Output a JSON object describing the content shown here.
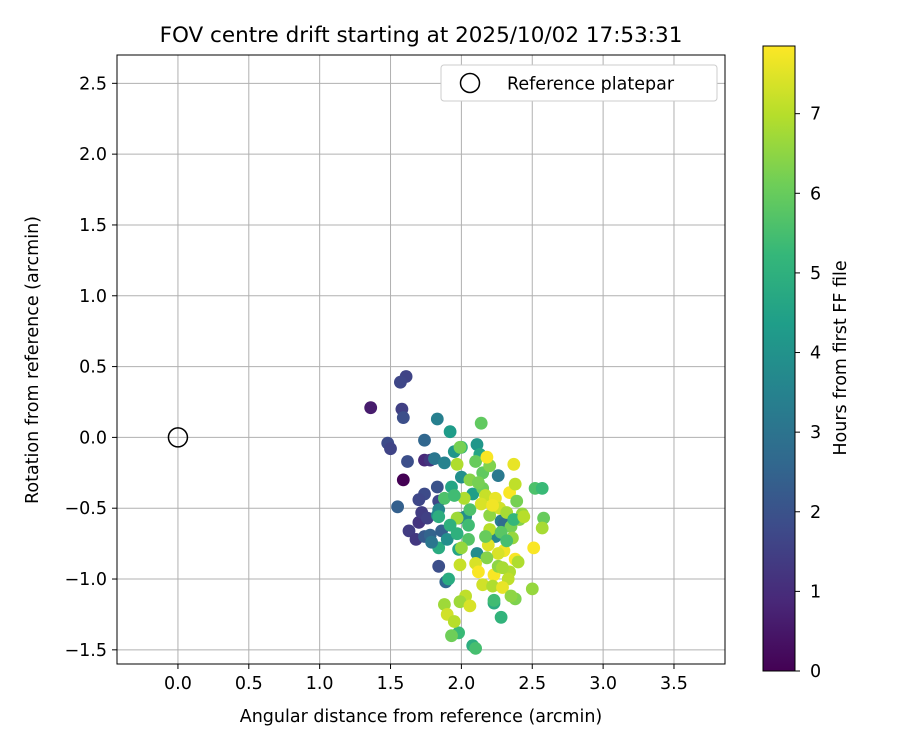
{
  "chart_data": {
    "type": "scatter",
    "title": "FOV centre drift starting at 2025/10/02 17:53:31",
    "xlabel": "Angular distance from reference (arcmin)",
    "ylabel": "Rotation from reference (arcmin)",
    "xlim": [
      -0.43,
      3.86
    ],
    "ylim": [
      -1.6,
      2.7
    ],
    "xticks": [
      0.0,
      0.5,
      1.0,
      1.5,
      2.0,
      2.5,
      3.0,
      3.5
    ],
    "xtick_labels": [
      "0.0",
      "0.5",
      "1.0",
      "1.5",
      "2.0",
      "2.5",
      "3.0",
      "3.5"
    ],
    "yticks": [
      -1.5,
      -1.0,
      -0.5,
      0.0,
      0.5,
      1.0,
      1.5,
      2.0,
      2.5
    ],
    "ytick_labels": [
      "−1.5",
      "−1.0",
      "−0.5",
      "0.0",
      "0.5",
      "1.0",
      "1.5",
      "2.0",
      "2.5"
    ],
    "grid": true,
    "legend": {
      "position": "top-right",
      "entries": [
        "Reference platepar"
      ]
    },
    "reference": {
      "x": 0.0,
      "y": 0.0,
      "label": "Reference platepar"
    },
    "colorbar": {
      "label": "Hours from first FF file",
      "range": [
        0,
        7.85
      ],
      "ticks": [
        0,
        1,
        2,
        3,
        4,
        5,
        6,
        7
      ],
      "tick_labels": [
        "0",
        "1",
        "2",
        "3",
        "4",
        "5",
        "6",
        "7"
      ],
      "colormap": [
        "#440154",
        "#482878",
        "#3e4989",
        "#31688e",
        "#26828e",
        "#1f9e89",
        "#35b779",
        "#6ece58",
        "#b5de2b",
        "#fde725"
      ]
    },
    "points": [
      [
        1.59,
        -0.3,
        0.0
      ],
      [
        1.36,
        0.21,
        0.6
      ],
      [
        1.61,
        0.43,
        1.6
      ],
      [
        1.57,
        0.39,
        1.7
      ],
      [
        1.58,
        0.2,
        1.5
      ],
      [
        1.59,
        0.14,
        1.9
      ],
      [
        1.48,
        -0.04,
        1.8
      ],
      [
        1.5,
        -0.08,
        1.6
      ],
      [
        1.62,
        -0.17,
        1.9
      ],
      [
        1.74,
        -0.16,
        0.9
      ],
      [
        1.78,
        -0.16,
        1.2
      ],
      [
        1.55,
        -0.49,
        2.4
      ],
      [
        1.63,
        -0.66,
        1.4
      ],
      [
        1.68,
        -0.72,
        1.3
      ],
      [
        1.7,
        -0.6,
        1.2
      ],
      [
        1.72,
        -0.53,
        1.4
      ],
      [
        1.76,
        -0.57,
        1.5
      ],
      [
        1.74,
        -0.4,
        1.8
      ],
      [
        1.7,
        -0.44,
        1.7
      ],
      [
        1.74,
        -0.7,
        2.2
      ],
      [
        1.78,
        -0.69,
        2.5
      ],
      [
        1.84,
        -0.45,
        1.7
      ],
      [
        1.83,
        -0.35,
        2.0
      ],
      [
        1.86,
        -0.66,
        2.4
      ],
      [
        1.84,
        -0.91,
        1.9
      ],
      [
        1.89,
        -1.02,
        2.6
      ],
      [
        1.74,
        -0.02,
        2.6
      ],
      [
        1.83,
        0.13,
        3.4
      ],
      [
        1.81,
        -0.15,
        3.1
      ],
      [
        1.88,
        -0.18,
        3.5
      ],
      [
        1.84,
        -0.51,
        3.6
      ],
      [
        1.83,
        -0.55,
        3.7
      ],
      [
        1.84,
        -0.78,
        4.8
      ],
      [
        1.92,
        0.04,
        4.3
      ],
      [
        1.95,
        -0.1,
        4.1
      ],
      [
        2.0,
        -0.28,
        3.9
      ],
      [
        1.98,
        -0.57,
        3.4
      ],
      [
        2.03,
        -0.56,
        3.8
      ],
      [
        2.08,
        -0.4,
        4.4
      ],
      [
        1.93,
        -0.35,
        4.6
      ],
      [
        2.0,
        -0.07,
        5.1
      ],
      [
        2.11,
        -0.05,
        4.1
      ],
      [
        2.13,
        -0.12,
        4.6
      ],
      [
        2.26,
        -0.27,
        3.2
      ],
      [
        2.28,
        -0.59,
        3.3
      ],
      [
        2.24,
        -0.7,
        3.6
      ],
      [
        2.3,
        -0.61,
        2.8
      ],
      [
        2.11,
        -0.82,
        3.8
      ],
      [
        1.98,
        -0.79,
        4.6
      ],
      [
        1.91,
        -1.0,
        4.8
      ],
      [
        1.98,
        -1.38,
        5.3
      ],
      [
        2.08,
        -1.47,
        4.9
      ],
      [
        2.1,
        -1.49,
        5.5
      ],
      [
        2.23,
        -1.17,
        4.8
      ],
      [
        2.28,
        -1.27,
        5.1
      ],
      [
        2.23,
        -1.15,
        5.4
      ],
      [
        2.14,
        0.1,
        5.9
      ],
      [
        1.99,
        -0.07,
        6.2
      ],
      [
        1.97,
        -0.19,
        6.9
      ],
      [
        2.1,
        -0.17,
        6.0
      ],
      [
        2.15,
        -0.25,
        5.9
      ],
      [
        2.2,
        -0.2,
        6.3
      ],
      [
        2.18,
        -0.14,
        7.8
      ],
      [
        2.37,
        -0.19,
        7.6
      ],
      [
        2.15,
        -0.36,
        6.1
      ],
      [
        2.17,
        -0.41,
        7.2
      ],
      [
        2.14,
        -0.47,
        7.4
      ],
      [
        2.2,
        -0.55,
        6.5
      ],
      [
        2.06,
        -0.51,
        5.6
      ],
      [
        2.05,
        -0.62,
        5.4
      ],
      [
        2.24,
        -0.43,
        7.6
      ],
      [
        2.34,
        -0.39,
        7.8
      ],
      [
        2.38,
        -0.33,
        7.1
      ],
      [
        2.43,
        -0.54,
        6.6
      ],
      [
        2.41,
        -0.58,
        6.4
      ],
      [
        2.52,
        -0.36,
        5.6
      ],
      [
        2.57,
        -0.36,
        5.3
      ],
      [
        2.58,
        -0.57,
        6.0
      ],
      [
        2.57,
        -0.64,
        6.8
      ],
      [
        2.35,
        -0.63,
        6.2
      ],
      [
        2.36,
        -0.71,
        6.6
      ],
      [
        2.2,
        -0.65,
        7.0
      ],
      [
        2.19,
        -0.76,
        7.5
      ],
      [
        2.3,
        -0.8,
        7.7
      ],
      [
        2.26,
        -0.82,
        7.4
      ],
      [
        2.38,
        -0.86,
        7.8
      ],
      [
        2.34,
        -0.95,
        6.9
      ],
      [
        2.33,
        -1.0,
        7.1
      ],
      [
        2.23,
        -0.97,
        7.8
      ],
      [
        2.15,
        -1.04,
        7.3
      ],
      [
        2.22,
        -1.05,
        6.9
      ],
      [
        2.29,
        -1.06,
        7.6
      ],
      [
        2.03,
        -1.12,
        7.1
      ],
      [
        1.99,
        -1.16,
        6.7
      ],
      [
        2.06,
        -1.19,
        7.4
      ],
      [
        2.51,
        -0.78,
        7.8
      ],
      [
        2.5,
        -1.07,
        6.6
      ],
      [
        2.38,
        -1.14,
        6.3
      ],
      [
        2.35,
        -1.12,
        6.5
      ],
      [
        1.88,
        -1.18,
        6.7
      ],
      [
        1.9,
        -1.25,
        7.3
      ],
      [
        1.95,
        -1.3,
        7.0
      ],
      [
        1.93,
        -1.4,
        6.1
      ],
      [
        1.99,
        -0.9,
        7.2
      ],
      [
        1.97,
        -0.57,
        6.7
      ],
      [
        2.02,
        -0.43,
        6.9
      ],
      [
        2.1,
        -0.89,
        7.4
      ],
      [
        2.12,
        -0.95,
        7.8
      ],
      [
        2.26,
        -0.91,
        6.5
      ],
      [
        2.4,
        -0.88,
        6.9
      ],
      [
        2.29,
        -0.92,
        6.8
      ],
      [
        2.18,
        -0.85,
        6.4
      ],
      [
        2.27,
        -0.5,
        7.3
      ],
      [
        2.22,
        -0.48,
        7.7
      ],
      [
        2.32,
        -0.53,
        6.8
      ],
      [
        2.39,
        -0.45,
        6.2
      ],
      [
        2.28,
        -0.67,
        5.8
      ],
      [
        2.32,
        -0.73,
        5.5
      ],
      [
        2.37,
        -0.58,
        5.2
      ],
      [
        2.44,
        -0.56,
        7.0
      ],
      [
        2.17,
        -0.7,
        6.0
      ],
      [
        2.05,
        -0.72,
        5.7
      ],
      [
        2.0,
        -0.78,
        6.6
      ],
      [
        1.92,
        -0.62,
        5.0
      ],
      [
        1.88,
        -0.43,
        5.6
      ],
      [
        1.95,
        -0.41,
        5.4
      ],
      [
        2.06,
        -0.3,
        6.4
      ],
      [
        2.12,
        -0.32,
        6.2
      ],
      [
        1.84,
        -0.56,
        4.9
      ],
      [
        1.79,
        -0.74,
        3.1
      ],
      [
        1.9,
        -0.72,
        3.9
      ],
      [
        1.97,
        -0.68,
        5.0
      ]
    ]
  }
}
